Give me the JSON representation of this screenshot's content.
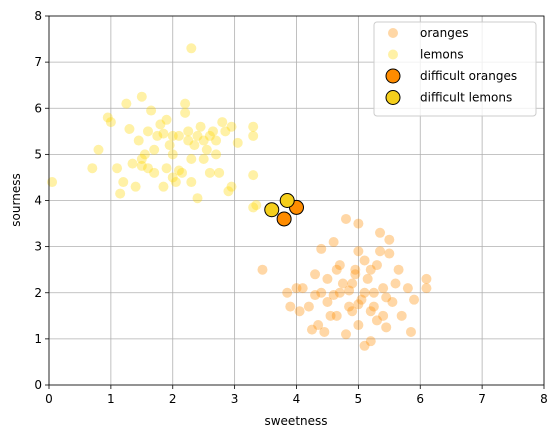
{
  "chart_data": {
    "type": "scatter",
    "xlabel": "sweetness",
    "ylabel": "sourness",
    "xlim": [
      0,
      8
    ],
    "ylim": [
      0,
      8
    ],
    "xticks": [
      0,
      1,
      2,
      3,
      4,
      5,
      6,
      7,
      8
    ],
    "yticks": [
      0,
      1,
      2,
      3,
      4,
      5,
      6,
      7,
      8
    ],
    "grid": true,
    "legend": "upper right",
    "series": [
      {
        "name": "oranges",
        "color": "#ff8c00",
        "opacity": 0.35,
        "edgecolor": "none",
        "size": 5,
        "x": [
          3.45,
          3.85,
          3.9,
          4.0,
          4.05,
          4.1,
          4.2,
          4.25,
          4.3,
          4.35,
          4.4,
          4.4,
          4.45,
          4.5,
          4.5,
          4.6,
          4.6,
          4.65,
          4.7,
          4.75,
          4.8,
          4.8,
          4.85,
          4.9,
          4.95,
          5.0,
          5.0,
          5.0,
          5.05,
          5.1,
          5.1,
          5.15,
          5.2,
          5.2,
          5.25,
          5.3,
          5.35,
          5.4,
          5.4,
          5.45,
          5.5,
          5.5,
          5.55,
          5.6,
          5.65,
          5.7,
          5.8,
          5.85,
          5.9,
          6.1,
          6.1,
          4.55,
          4.3,
          4.7,
          5.0,
          5.2,
          5.3,
          4.9,
          5.1,
          5.35,
          4.95,
          5.25,
          4.65,
          5.45,
          4.85
        ],
        "y": [
          2.5,
          2.0,
          1.7,
          2.1,
          1.6,
          2.1,
          1.7,
          1.2,
          2.4,
          1.3,
          2.0,
          2.95,
          1.15,
          1.8,
          2.3,
          3.1,
          1.95,
          1.5,
          2.6,
          2.2,
          3.6,
          1.1,
          1.7,
          2.2,
          2.5,
          1.3,
          2.9,
          3.5,
          1.85,
          0.85,
          2.7,
          2.3,
          0.95,
          1.6,
          2.0,
          2.6,
          3.3,
          1.5,
          2.1,
          1.25,
          2.85,
          3.15,
          1.8,
          2.2,
          2.5,
          1.5,
          2.1,
          1.15,
          1.85,
          2.3,
          2.1,
          1.5,
          1.95,
          2.0,
          1.75,
          2.5,
          1.4,
          1.6,
          2.0,
          2.9,
          2.4,
          1.7,
          2.5,
          1.9,
          2.05
        ]
      },
      {
        "name": "lemons",
        "color": "#ffd700",
        "opacity": 0.35,
        "edgecolor": "none",
        "size": 5,
        "x": [
          0.05,
          0.7,
          0.8,
          0.95,
          1.1,
          1.15,
          1.2,
          1.25,
          1.3,
          1.35,
          1.4,
          1.45,
          1.5,
          1.5,
          1.55,
          1.6,
          1.65,
          1.7,
          1.7,
          1.75,
          1.8,
          1.85,
          1.9,
          1.9,
          1.95,
          2.0,
          2.0,
          2.05,
          2.1,
          2.15,
          2.2,
          2.2,
          2.25,
          2.3,
          2.3,
          2.35,
          2.4,
          2.4,
          2.45,
          2.5,
          2.5,
          2.55,
          2.6,
          2.65,
          2.7,
          2.75,
          2.8,
          2.85,
          2.9,
          2.95,
          3.05,
          3.3,
          3.3,
          3.3,
          3.3,
          3.35,
          1.0,
          1.6,
          2.1,
          1.85,
          2.25,
          2.0,
          2.7,
          1.5,
          2.95,
          2.3,
          2.6
        ],
        "y": [
          4.4,
          4.7,
          5.1,
          5.8,
          4.7,
          4.15,
          4.4,
          6.1,
          5.55,
          4.8,
          4.3,
          5.3,
          6.25,
          4.9,
          5.0,
          5.5,
          5.95,
          5.1,
          4.6,
          5.4,
          5.65,
          4.3,
          5.75,
          4.7,
          5.2,
          4.5,
          5.0,
          4.4,
          5.4,
          4.6,
          6.1,
          5.9,
          5.5,
          4.9,
          7.3,
          5.2,
          4.05,
          5.4,
          5.6,
          4.9,
          5.3,
          5.1,
          4.6,
          5.5,
          5.0,
          4.6,
          5.7,
          5.5,
          4.2,
          4.3,
          5.25,
          5.6,
          5.4,
          4.55,
          3.85,
          3.9,
          5.7,
          4.7,
          4.65,
          5.45,
          5.3,
          5.4,
          5.3,
          4.75,
          5.6,
          4.4,
          5.4
        ]
      },
      {
        "name": "difficult oranges",
        "color": "#ff8c00",
        "opacity": 1,
        "edgecolor": "#000000",
        "size": 7,
        "x": [
          3.8,
          4.0
        ],
        "y": [
          3.6,
          3.85
        ]
      },
      {
        "name": "difficult lemons",
        "color": "#f5cf1c",
        "opacity": 1,
        "edgecolor": "#000000",
        "size": 7,
        "x": [
          3.6,
          3.85
        ],
        "y": [
          3.8,
          4.0
        ]
      }
    ]
  }
}
